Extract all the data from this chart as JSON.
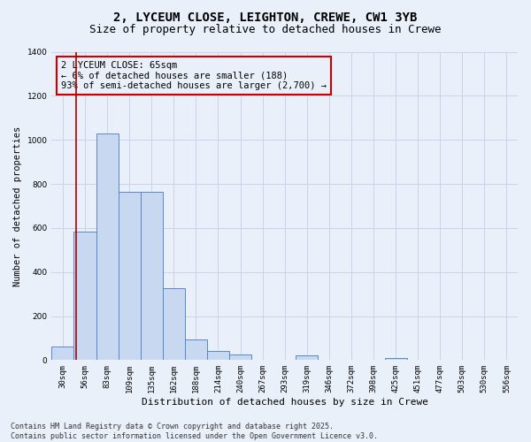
{
  "title_line1": "2, LYCEUM CLOSE, LEIGHTON, CREWE, CW1 3YB",
  "title_line2": "Size of property relative to detached houses in Crewe",
  "xlabel": "Distribution of detached houses by size in Crewe",
  "ylabel": "Number of detached properties",
  "categories": [
    "30sqm",
    "56sqm",
    "83sqm",
    "109sqm",
    "135sqm",
    "162sqm",
    "188sqm",
    "214sqm",
    "240sqm",
    "267sqm",
    "293sqm",
    "319sqm",
    "346sqm",
    "372sqm",
    "398sqm",
    "425sqm",
    "451sqm",
    "477sqm",
    "503sqm",
    "530sqm",
    "556sqm"
  ],
  "values": [
    60,
    585,
    1030,
    762,
    762,
    325,
    95,
    40,
    25,
    0,
    0,
    20,
    0,
    0,
    0,
    10,
    0,
    0,
    0,
    0,
    0
  ],
  "bar_color": "#c8d8f0",
  "bar_edge_color": "#5588cc",
  "grid_color": "#c8d4e8",
  "background_color": "#eaf0fa",
  "red_line_color": "#aa0000",
  "red_line_x": 0.6,
  "annotation_text": "2 LYCEUM CLOSE: 65sqm\n← 6% of detached houses are smaller (188)\n93% of semi-detached houses are larger (2,700) →",
  "annotation_box_color": "#cc0000",
  "ylim": [
    0,
    1400
  ],
  "yticks": [
    0,
    200,
    400,
    600,
    800,
    1000,
    1200,
    1400
  ],
  "footer_text": "Contains HM Land Registry data © Crown copyright and database right 2025.\nContains public sector information licensed under the Open Government Licence v3.0.",
  "title_fontsize": 10,
  "subtitle_fontsize": 9,
  "xlabel_fontsize": 8,
  "ylabel_fontsize": 7.5,
  "tick_fontsize": 6.5,
  "annotation_fontsize": 7.5,
  "footer_fontsize": 6
}
